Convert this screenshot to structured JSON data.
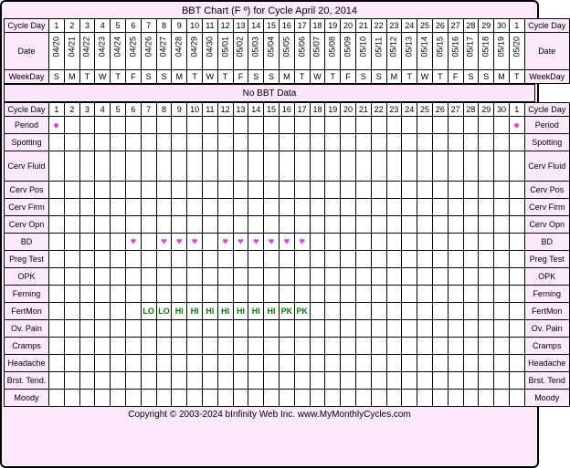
{
  "title": "BBT Chart (F º) for Cycle April 20, 2014",
  "no_data_text": "No BBT Data",
  "footer": "Copyright © 2003-2024 bInfinity Web Inc.    www.MyMonthlyCycles.com",
  "colors": {
    "chart_border": "#000000",
    "chart_background": "#fce9fc",
    "cell_background": "#ffffff",
    "grid_line": "#000000",
    "period_dot": "#e642d5",
    "heart": "#e642d5",
    "fert_text": "#008000"
  },
  "labels": {
    "cycle_day": "Cycle Day",
    "date": "Date",
    "weekday": "WeekDay"
  },
  "cycle_days": [
    "1",
    "2",
    "3",
    "4",
    "5",
    "6",
    "7",
    "8",
    "9",
    "10",
    "11",
    "12",
    "13",
    "14",
    "15",
    "16",
    "17",
    "18",
    "19",
    "20",
    "21",
    "22",
    "23",
    "24",
    "25",
    "26",
    "27",
    "28",
    "29",
    "30",
    "1"
  ],
  "dates": [
    "04/20",
    "04/21",
    "04/22",
    "04/23",
    "04/24",
    "04/25",
    "04/26",
    "04/27",
    "04/28",
    "04/29",
    "04/30",
    "05/01",
    "05/02",
    "05/03",
    "05/04",
    "05/05",
    "05/06",
    "05/07",
    "05/08",
    "05/09",
    "05/10",
    "05/11",
    "05/12",
    "05/13",
    "05/14",
    "05/15",
    "05/16",
    "05/17",
    "05/18",
    "05/19",
    "05/20"
  ],
  "weekdays": [
    "S",
    "M",
    "T",
    "W",
    "T",
    "F",
    "S",
    "S",
    "M",
    "T",
    "W",
    "T",
    "F",
    "S",
    "S",
    "M",
    "T",
    "W",
    "T",
    "F",
    "S",
    "S",
    "M",
    "T",
    "W",
    "T",
    "F",
    "S",
    "S",
    "M",
    "T"
  ],
  "track_rows": [
    {
      "label": "Period",
      "right": "Period",
      "type": "period",
      "days": [
        1,
        31
      ]
    },
    {
      "label": "Spotting",
      "right": "Spotting",
      "type": "empty"
    },
    {
      "label": "Cerv Fluid",
      "right": "Cerv Fluid",
      "type": "empty",
      "tall": true
    },
    {
      "label": "Cerv Pos",
      "right": "Cerv Pos",
      "type": "empty"
    },
    {
      "label": "Cerv Firm",
      "right": "Cerv Firm",
      "type": "empty"
    },
    {
      "label": "Cerv Opn",
      "right": "Cerv Opn",
      "type": "empty"
    },
    {
      "label": "BD",
      "right": "BD",
      "type": "bd",
      "days": [
        6,
        8,
        9,
        10,
        12,
        13,
        14,
        15,
        16,
        17
      ]
    },
    {
      "label": "Preg Test",
      "right": "Preg Test",
      "type": "empty"
    },
    {
      "label": "OPK",
      "right": "OPK",
      "type": "empty"
    },
    {
      "label": "Ferning",
      "right": "Ferning",
      "type": "empty"
    },
    {
      "label": "FertMon",
      "right": "FertMon",
      "type": "fert",
      "values": {
        "7": "LO",
        "8": "LO",
        "9": "HI",
        "10": "HI",
        "11": "HI",
        "12": "HI",
        "13": "HI",
        "14": "HI",
        "15": "HI",
        "16": "PK",
        "17": "PK"
      }
    },
    {
      "label": "Ov. Pain",
      "right": "Ov. Pain",
      "type": "empty"
    },
    {
      "label": "Cramps",
      "right": "Cramps",
      "type": "empty"
    },
    {
      "label": "Headache",
      "right": "Headache",
      "type": "empty"
    },
    {
      "label": "Brst. Tend.",
      "right": "Brst. Tend",
      "type": "empty"
    },
    {
      "label": "Moody",
      "right": "Moody",
      "type": "empty"
    }
  ]
}
